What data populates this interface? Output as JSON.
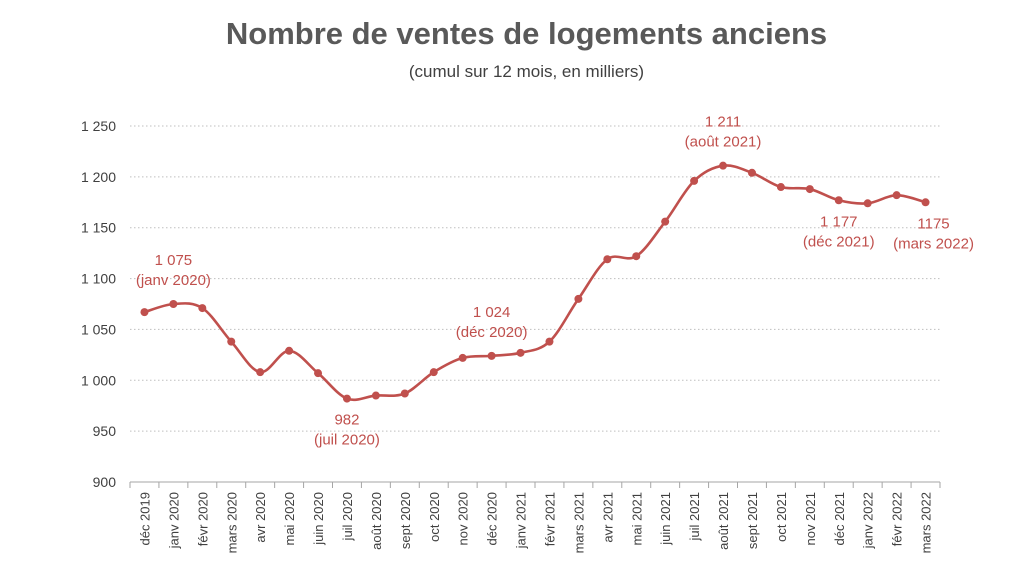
{
  "colors": {
    "series": "#c0504d",
    "grid": "#bfbfbf",
    "axis": "#a6a6a6",
    "text": "#404040"
  },
  "chart_data": {
    "type": "line",
    "title": "Nombre de ventes de logements anciens",
    "subtitle": "(cumul sur 12 mois, en milliers)",
    "ylim": [
      900,
      1250
    ],
    "yticks": [
      900,
      950,
      1000,
      1050,
      1100,
      1150,
      1200,
      1250
    ],
    "ytick_labels": [
      "900",
      "950",
      "1 000",
      "1 050",
      "1 100",
      "1 150",
      "1 200",
      "1 250"
    ],
    "grid": "horizontal-dotted",
    "categories": [
      "déc 2019",
      "janv 2020",
      "févr 2020",
      "mars 2020",
      "avr 2020",
      "mai 2020",
      "juin 2020",
      "juil 2020",
      "août 2020",
      "sept 2020",
      "oct 2020",
      "nov 2020",
      "déc 2020",
      "janv 2021",
      "févr 2021",
      "mars 2021",
      "avr 2021",
      "mai 2021",
      "juin 2021",
      "juil 2021",
      "août 2021",
      "sept 2021",
      "oct 2021",
      "nov 2021",
      "déc 2021",
      "janv 2022",
      "févr 2022",
      "mars 2022"
    ],
    "series": [
      {
        "values": [
          1067,
          1075,
          1071,
          1038,
          1008,
          1029,
          1007,
          982,
          985,
          987,
          1008,
          1022,
          1024,
          1027,
          1038,
          1080,
          1119,
          1122,
          1156,
          1196,
          1211,
          1204,
          1190,
          1188,
          1177,
          1174,
          1182,
          1175
        ]
      }
    ],
    "annotations": [
      {
        "index": 1,
        "lines": [
          "1 075",
          "(janv 2020)"
        ],
        "position": "above"
      },
      {
        "index": 7,
        "lines": [
          "982",
          "(juil 2020)"
        ],
        "position": "below"
      },
      {
        "index": 12,
        "lines": [
          "1 024",
          "(déc 2020)"
        ],
        "position": "above"
      },
      {
        "index": 20,
        "lines": [
          "1 211",
          "(août 2021)"
        ],
        "position": "above"
      },
      {
        "index": 24,
        "lines": [
          "1 177",
          "(déc 2021)"
        ],
        "position": "below"
      },
      {
        "index": 27,
        "lines": [
          "1175",
          "(mars 2022)"
        ],
        "position": "below"
      }
    ]
  }
}
